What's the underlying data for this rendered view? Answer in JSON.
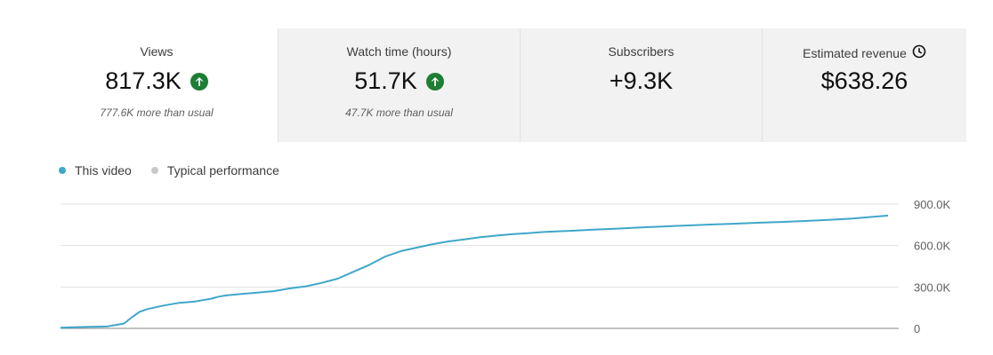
{
  "metrics": [
    {
      "title": "Views",
      "value": "817.3K",
      "trend": "up",
      "subtitle": "777.6K more than usual"
    },
    {
      "title": "Watch time (hours)",
      "value": "51.7K",
      "trend": "up",
      "subtitle": "47.7K more than usual"
    },
    {
      "title": "Subscribers",
      "value": "+9.3K",
      "trend": "",
      "subtitle": ""
    },
    {
      "title": "Estimated revenue",
      "value": "$638.26",
      "trend": "",
      "subtitle": "",
      "icon": "clock-icon"
    }
  ],
  "legend": [
    {
      "label": "This video",
      "color": "#3fa7c9"
    },
    {
      "label": "Typical performance",
      "color": "#c8c8c8"
    }
  ],
  "colors": {
    "accent": "#3fa7c9",
    "up": "#1e7e34",
    "grid": "#e0e0e0"
  },
  "chart_data": {
    "type": "line",
    "series": [
      {
        "name": "This video",
        "x": [
          0,
          15,
          30,
          45,
          60,
          70,
          80,
          90,
          100,
          110,
          130,
          150,
          170,
          190,
          200,
          210,
          230,
          250,
          270,
          290,
          310,
          330,
          350,
          370,
          390,
          410,
          430,
          450,
          470,
          490,
          510,
          530,
          550,
          570,
          590,
          610,
          640,
          670,
          700,
          730,
          760,
          790,
          820,
          850,
          880,
          910,
          940,
          970,
          1000,
          1020,
          1045
        ],
        "values": [
          5000,
          8000,
          10000,
          12000,
          15000,
          25000,
          35000,
          80000,
          120000,
          140000,
          165000,
          185000,
          195000,
          215000,
          230000,
          240000,
          250000,
          260000,
          270000,
          290000,
          305000,
          330000,
          360000,
          410000,
          460000,
          520000,
          560000,
          585000,
          610000,
          630000,
          645000,
          660000,
          672000,
          682000,
          690000,
          698000,
          706000,
          714000,
          722000,
          730000,
          738000,
          745000,
          752000,
          758000,
          765000,
          771000,
          778000,
          786000,
          795000,
          805000,
          817300
        ]
      }
    ],
    "yticks": [
      "900.0K",
      "600.0K",
      "300.0K",
      "0"
    ],
    "ylim": [
      0,
      900000
    ],
    "xlim": [
      0,
      1045
    ],
    "grid": true,
    "legend_position": "top-left"
  }
}
